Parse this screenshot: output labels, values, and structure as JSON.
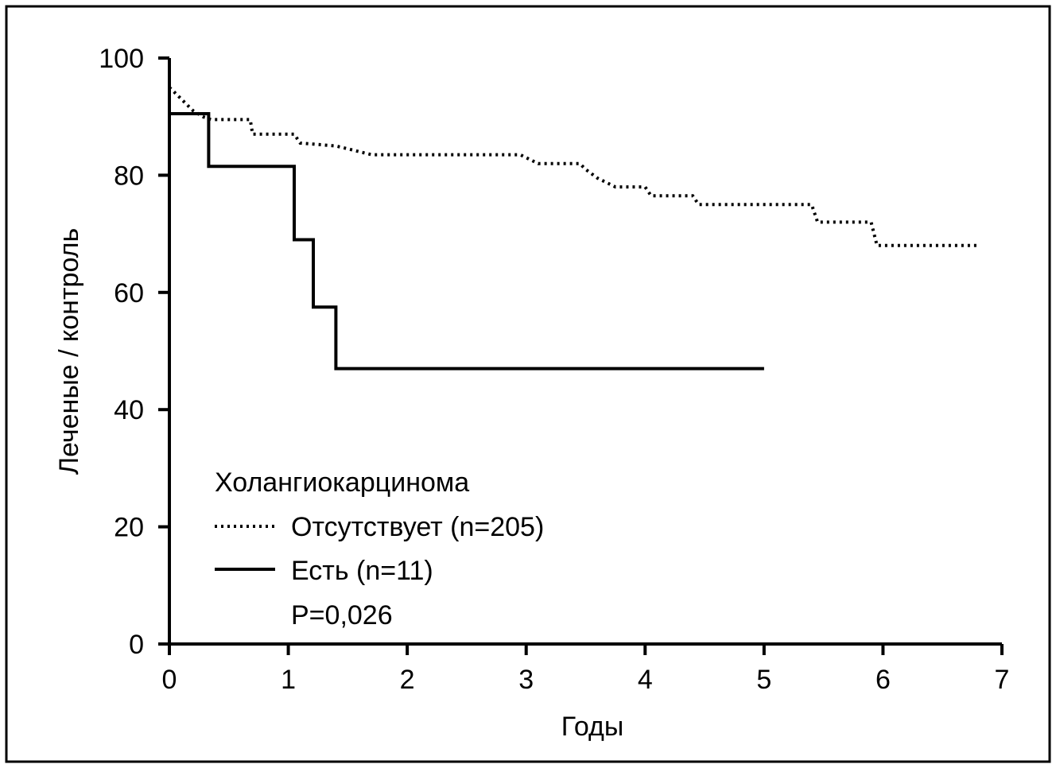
{
  "chart_data": {
    "type": "line",
    "xlabel": "Годы",
    "ylabel": "Леченые / контроль",
    "xlim": [
      0,
      7
    ],
    "ylim": [
      0,
      100
    ],
    "xticks": [
      "0",
      "1",
      "2",
      "3",
      "4",
      "5",
      "6",
      "7"
    ],
    "yticks": [
      "0",
      "20",
      "40",
      "60",
      "80",
      "100"
    ],
    "grid": false,
    "legend_position": "bottom-left",
    "legend_title": "Холангиокарцинома",
    "annotation": "P=0,026",
    "colors": {
      "line": "#000000",
      "background": "#ffffff"
    },
    "series": [
      {
        "name": "Отсутствует (n=205)",
        "style": "dotted",
        "x": [
          0,
          0.05,
          0.1,
          0.15,
          0.2,
          0.28,
          0.35,
          0.68,
          0.7,
          1.05,
          1.1,
          1.4,
          1.5,
          1.7,
          2.95,
          3.1,
          3.45,
          3.5,
          3.6,
          3.75,
          4.0,
          4.05,
          4.4,
          4.45,
          5.4,
          5.45,
          5.9,
          5.95,
          6.8
        ],
        "y": [
          95,
          94,
          93,
          92,
          91,
          90,
          89.5,
          89.5,
          87,
          87,
          85.5,
          85,
          84.5,
          83.5,
          83.5,
          82,
          82,
          81,
          79.5,
          78,
          78,
          76.5,
          76.5,
          75,
          75,
          72,
          72,
          68,
          68
        ]
      },
      {
        "name": "Есть (n=11)",
        "style": "solid",
        "x": [
          0,
          0.33,
          0.33,
          1.05,
          1.05,
          1.21,
          1.21,
          1.4,
          1.4,
          5.0
        ],
        "y": [
          90.5,
          90.5,
          81.5,
          81.5,
          69,
          69,
          57.5,
          57.5,
          47,
          47
        ]
      }
    ]
  }
}
